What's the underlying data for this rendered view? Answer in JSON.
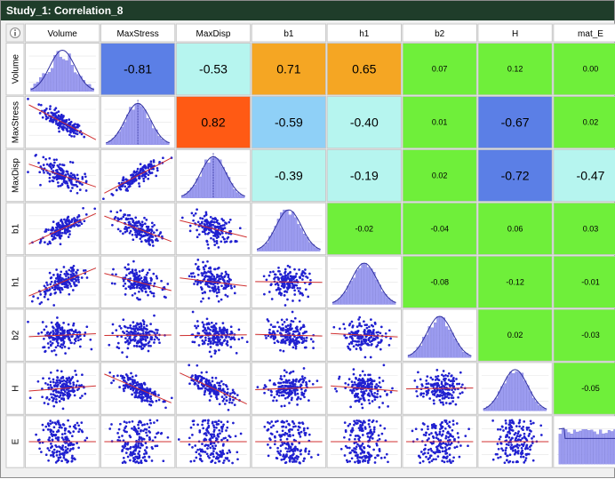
{
  "window": {
    "title": "Study_1: Correlation_8",
    "info_icon": "info-icon"
  },
  "variables": [
    "Volume",
    "MaxStress",
    "MaxDisp",
    "b1",
    "h1",
    "b2",
    "H",
    "mat_E"
  ],
  "row_labels": [
    "Volume",
    "MaxStress",
    "MaxDisp",
    "b1",
    "h1",
    "b2",
    "H",
    "E"
  ],
  "correlations": [
    [
      null,
      "-0.81",
      "-0.53",
      "0.71",
      "0.65",
      "0.07",
      "0.12",
      "0.00"
    ],
    [
      null,
      null,
      "0.82",
      "-0.59",
      "-0.40",
      "0.01",
      "-0.67",
      "0.02"
    ],
    [
      null,
      null,
      null,
      "-0.39",
      "-0.19",
      "0.02",
      "-0.72",
      "-0.47"
    ],
    [
      null,
      null,
      null,
      null,
      "-0.02",
      "-0.04",
      "0.06",
      "0.03"
    ],
    [
      null,
      null,
      null,
      null,
      null,
      "-0.08",
      "-0.12",
      "-0.01"
    ],
    [
      null,
      null,
      null,
      null,
      null,
      null,
      "0.02",
      "-0.03"
    ],
    [
      null,
      null,
      null,
      null,
      null,
      null,
      null,
      "-0.05"
    ],
    [
      null,
      null,
      null,
      null,
      null,
      null,
      null,
      null
    ]
  ],
  "colors": {
    "titlebar": "#1f3d2a",
    "strong_negative": "#5b7fe6",
    "moderate_negative": "#8fd0f7",
    "weak_negative": "#b6f5ef",
    "neutral": "#6fef3a",
    "moderate_positive": "#f5a623",
    "strong_positive": "#ff5a14",
    "plot_points": "#2020d0",
    "histogram_fill": "#9c9cf0",
    "fit_line": "#d03030"
  }
}
